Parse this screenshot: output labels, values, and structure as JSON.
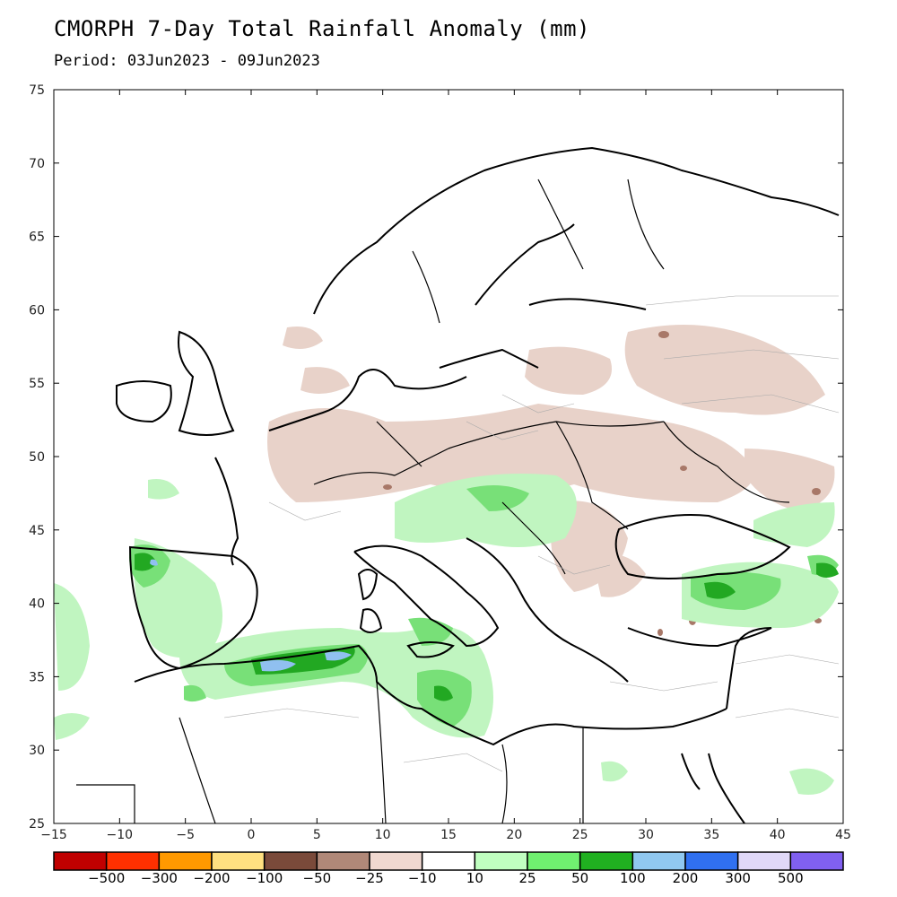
{
  "header": {
    "title": "CMORPH 7-Day Total Rainfall Anomaly (mm)",
    "period": "Period: 03Jun2023 - 09Jun2023"
  },
  "axes": {
    "lon_ticks": [
      "−15",
      "−10",
      "−5",
      "0",
      "5",
      "10",
      "15",
      "20",
      "25",
      "30",
      "35",
      "40",
      "45"
    ],
    "lat_ticks": [
      "75",
      "70",
      "65",
      "60",
      "55",
      "50",
      "45",
      "40",
      "35",
      "30",
      "25"
    ]
  },
  "legend": {
    "colors": [
      "#c00000",
      "#ff3000",
      "#ff9900",
      "#ffe080",
      "#7a4a3a",
      "#b08878",
      "#f0d8d0",
      "#ffffff",
      "#c0ffc0",
      "#70f070",
      "#20b020",
      "#90c8f0",
      "#3070f0",
      "#e0d8f8",
      "#8060f0"
    ],
    "labels": [
      "−500",
      "−300",
      "−200",
      "−100",
      "−50",
      "−25",
      "−10",
      "10",
      "25",
      "50",
      "100",
      "200",
      "300",
      "500"
    ]
  },
  "colors": {
    "land_border": "#000000",
    "admin_border": "#999999",
    "dry_anomaly": "#e6cfc6",
    "wet_light": "#c0f5c0",
    "wet_medium": "#70e070",
    "wet_strong": "#20a020",
    "wet_blue": "#90c0f0"
  }
}
